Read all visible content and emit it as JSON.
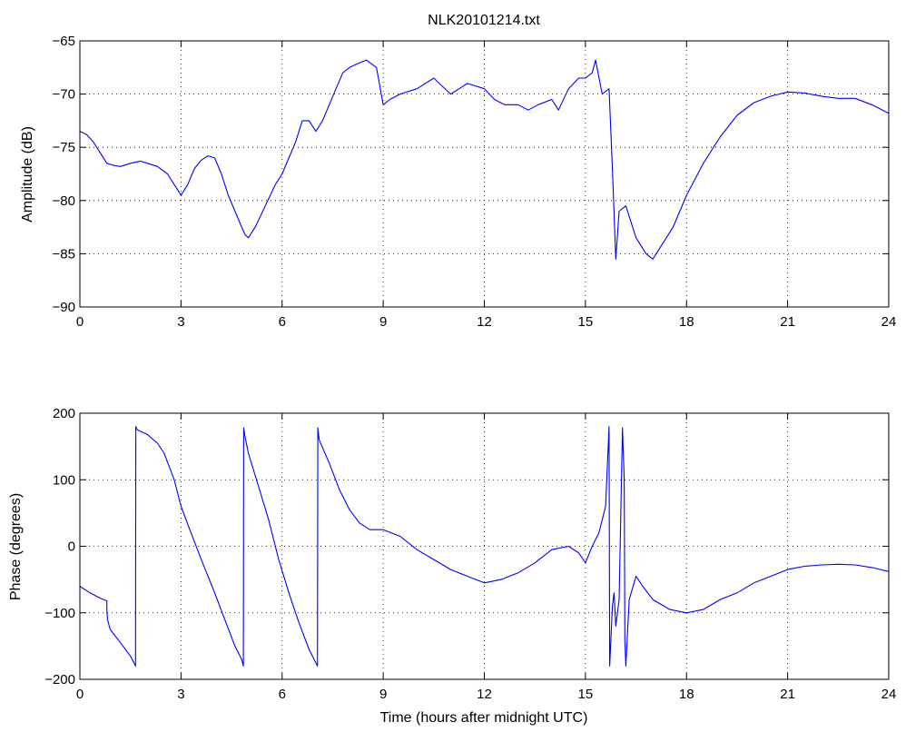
{
  "chart_data": [
    {
      "type": "line",
      "title": "NLK20101214.txt",
      "xlabel": "",
      "ylabel": "Amplitude (dB)",
      "xlim": [
        0,
        24
      ],
      "ylim": [
        -90,
        -65
      ],
      "xticks": [
        0,
        3,
        6,
        9,
        12,
        15,
        18,
        21,
        24
      ],
      "yticks": [
        -90,
        -85,
        -80,
        -75,
        -70,
        -65
      ],
      "xtick_labels": [
        "0",
        "3",
        "6",
        "9",
        "12",
        "15",
        "18",
        "21",
        "24"
      ],
      "ytick_labels": [
        "−90",
        "−85",
        "−80",
        "−75",
        "−70",
        "−65"
      ],
      "grid": true,
      "color": "#0000ff",
      "series": [
        {
          "x": [
            0,
            0.2,
            0.4,
            0.6,
            0.8,
            1.0,
            1.2,
            1.5,
            1.8,
            2.0,
            2.3,
            2.6,
            2.8,
            3.0,
            3.2,
            3.4,
            3.6,
            3.8,
            4.0,
            4.2,
            4.4,
            4.6,
            4.8,
            4.9,
            5.0,
            5.2,
            5.5,
            5.8,
            6.0,
            6.2,
            6.4,
            6.6,
            6.8,
            7.0,
            7.2,
            7.4,
            7.6,
            7.8,
            8.0,
            8.2,
            8.5,
            8.8,
            9.0,
            9.2,
            9.5,
            10.0,
            10.5,
            11.0,
            11.5,
            12.0,
            12.3,
            12.6,
            13.0,
            13.3,
            13.6,
            14.0,
            14.2,
            14.5,
            14.8,
            15.0,
            15.2,
            15.3,
            15.5,
            15.7,
            15.8,
            15.9,
            16.0,
            16.2,
            16.5,
            16.8,
            17.0,
            17.3,
            17.6,
            18.0,
            18.5,
            19.0,
            19.5,
            20.0,
            20.5,
            21.0,
            21.5,
            22.0,
            22.5,
            23.0,
            23.5,
            24.0
          ],
          "y": [
            -73.5,
            -73.8,
            -74.5,
            -75.5,
            -76.5,
            -76.7,
            -76.8,
            -76.5,
            -76.3,
            -76.5,
            -76.8,
            -77.5,
            -78.5,
            -79.5,
            -78.5,
            -77.0,
            -76.2,
            -75.8,
            -76.0,
            -77.5,
            -79.5,
            -81.0,
            -82.5,
            -83.2,
            -83.5,
            -82.5,
            -80.5,
            -78.5,
            -77.5,
            -76.0,
            -74.5,
            -72.5,
            -72.5,
            -73.5,
            -72.5,
            -71.0,
            -69.5,
            -68.0,
            -67.5,
            -67.2,
            -66.8,
            -67.5,
            -71.0,
            -70.5,
            -70.0,
            -69.5,
            -68.5,
            -70.0,
            -69.0,
            -69.5,
            -70.5,
            -71.0,
            -71.0,
            -71.5,
            -71.0,
            -70.5,
            -71.5,
            -69.5,
            -68.5,
            -68.5,
            -68.0,
            -66.8,
            -70.0,
            -69.5,
            -77.0,
            -85.5,
            -81.0,
            -80.5,
            -83.5,
            -85.0,
            -85.5,
            -84.0,
            -82.5,
            -79.5,
            -76.5,
            -74.0,
            -72.0,
            -70.8,
            -70.2,
            -69.8,
            -69.9,
            -70.2,
            -70.4,
            -70.4,
            -71.0,
            -71.8
          ]
        }
      ]
    },
    {
      "type": "line",
      "title": "",
      "xlabel": "Time (hours after midnight UTC)",
      "ylabel": "Phase (degrees)",
      "xlim": [
        0,
        24
      ],
      "ylim": [
        -200,
        200
      ],
      "xticks": [
        0,
        3,
        6,
        9,
        12,
        15,
        18,
        21,
        24
      ],
      "yticks": [
        -200,
        -100,
        0,
        100,
        200
      ],
      "xtick_labels": [
        "0",
        "3",
        "6",
        "9",
        "12",
        "15",
        "18",
        "21",
        "24"
      ],
      "ytick_labels": [
        "−200",
        "−100",
        "0",
        "100",
        "200"
      ],
      "grid": true,
      "color": "#0000ff",
      "series": [
        {
          "x": [
            0,
            0.3,
            0.6,
            0.8,
            0.8,
            0.82,
            0.9,
            1.2,
            1.5,
            1.65,
            1.66,
            1.7,
            2.0,
            2.3,
            2.5,
            2.8,
            3.0,
            3.3,
            3.6,
            4.0,
            4.3,
            4.6,
            4.8,
            4.85,
            4.86,
            4.9,
            5.0,
            5.3,
            5.6,
            5.9,
            6.2,
            6.5,
            6.8,
            7.05,
            7.06,
            7.1,
            7.4,
            7.7,
            8.0,
            8.3,
            8.6,
            9.0,
            9.5,
            10.0,
            10.5,
            11.0,
            11.5,
            12.0,
            12.5,
            13.0,
            13.5,
            14.0,
            14.5,
            14.8,
            15.0,
            15.2,
            15.4,
            15.6,
            15.7,
            15.72,
            15.8,
            15.85,
            15.9,
            16.0,
            16.1,
            16.15,
            16.17,
            16.2,
            16.3,
            16.5,
            16.7,
            17.0,
            17.5,
            18.0,
            18.5,
            19.0,
            19.5,
            20.0,
            20.5,
            21.0,
            21.5,
            22.0,
            22.5,
            23.0,
            23.5,
            24.0
          ],
          "y": [
            -60,
            -70,
            -78,
            -82,
            -95,
            -110,
            -125,
            -145,
            -165,
            -180,
            180,
            175,
            168,
            155,
            140,
            100,
            60,
            20,
            -20,
            -70,
            -110,
            -150,
            -170,
            -180,
            178,
            165,
            140,
            90,
            40,
            -20,
            -70,
            -115,
            -155,
            -180,
            178,
            160,
            125,
            85,
            55,
            35,
            25,
            25,
            15,
            -5,
            -20,
            -35,
            -45,
            -55,
            -50,
            -40,
            -25,
            -5,
            0,
            -10,
            -25,
            0,
            20,
            60,
            180,
            -180,
            -90,
            -70,
            -120,
            -80,
            178,
            100,
            -140,
            -180,
            -80,
            -45,
            -60,
            -80,
            -95,
            -100,
            -95,
            -80,
            -70,
            -55,
            -45,
            -35,
            -30,
            -28,
            -27,
            -28,
            -32,
            -38
          ]
        }
      ]
    }
  ]
}
